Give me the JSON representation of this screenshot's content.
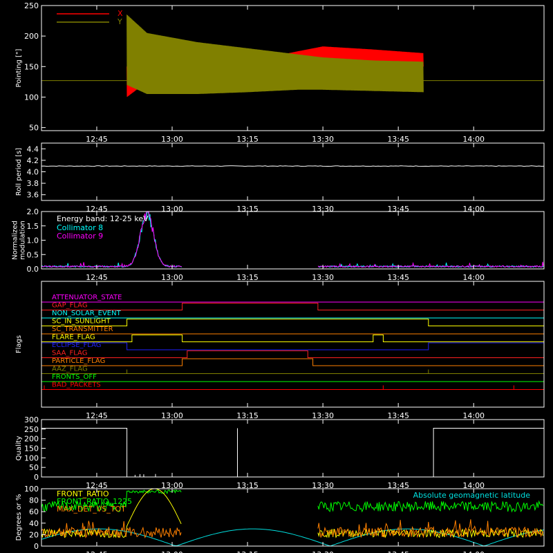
{
  "colors": {
    "background": "#000000",
    "axes": "#ffffff",
    "pointing_x": "#ff0000",
    "pointing_y": "#808000",
    "col8": "#00ffff",
    "col9": "#ff00ff",
    "white": "#ffffff"
  },
  "time_ticks": [
    "12:45",
    "13:00",
    "13:15",
    "13:30",
    "13:45",
    "14:00"
  ],
  "chart_data": [
    {
      "type": "line",
      "title": "",
      "xlabel": "",
      "ylabel": "Pointing [\"]",
      "x_range": [
        "12:34",
        "14:14"
      ],
      "ylim": [
        45,
        250
      ],
      "yticks": [
        "50",
        "100",
        "150",
        "200",
        "250"
      ],
      "legend_placement": "top-left",
      "series": [
        {
          "name": "X",
          "color": "#ff0000",
          "approx_center": 127,
          "envelope_x": [
            "12:51",
            "12:55",
            "13:05",
            "13:15",
            "13:25",
            "13:30",
            "13:40",
            "13:50"
          ],
          "envelope_low": [
            100,
            125,
            140,
            148,
            153,
            155,
            152,
            150
          ],
          "envelope_high": [
            150,
            150,
            152,
            158,
            175,
            183,
            178,
            172
          ]
        },
        {
          "name": "Y",
          "color": "#808000",
          "approx_center": 127,
          "envelope_x": [
            "12:51",
            "12:55",
            "13:05",
            "13:15",
            "13:25",
            "13:30",
            "13:40",
            "13:50"
          ],
          "envelope_low": [
            120,
            105,
            105,
            108,
            112,
            112,
            110,
            108
          ],
          "envelope_high": [
            235,
            205,
            190,
            180,
            170,
            165,
            160,
            158
          ]
        }
      ]
    },
    {
      "type": "line",
      "ylabel": "Roll period [s]",
      "ylim": [
        3.5,
        4.5
      ],
      "yticks": [
        "3.6",
        "3.8",
        "4.0",
        "4.2",
        "4.4"
      ],
      "series": [
        {
          "name": "",
          "constant_value": 4.1
        }
      ]
    },
    {
      "type": "line",
      "ylabel": "Normalized modulation",
      "ylabel_lines": [
        "Normalized",
        "modulation"
      ],
      "ylim": [
        0,
        2.0
      ],
      "yticks": [
        "0.0",
        "0.5",
        "1.0",
        "1.5",
        "2.0"
      ],
      "legend_title": "Energy band: 12-25 keV",
      "legend_placement": "top-left",
      "data_gaps": [
        [
          "13:02",
          "13:29"
        ]
      ],
      "peak": {
        "time": "12:55",
        "value": 1.95
      },
      "series": [
        {
          "name": "Collimator 8",
          "color": "#00ffff"
        },
        {
          "name": "Collimator 9",
          "color": "#ff00ff"
        }
      ]
    },
    {
      "type": "table",
      "ylabel": "Flags",
      "flags": [
        {
          "name": "ATTENUATOR_STATE",
          "color": "#ff00ff",
          "high_intervals": []
        },
        {
          "name": "GAP_FLAG",
          "color": "#ff2020",
          "high_intervals": [
            [
              "13:02",
              "13:29"
            ]
          ]
        },
        {
          "name": "NON_SOLAR_EVENT",
          "color": "#00ffff",
          "high_intervals": []
        },
        {
          "name": "SC_IN_SUNLIGHT",
          "color": "#ffff00",
          "high_intervals": [
            [
              "12:51",
              "13:51"
            ]
          ]
        },
        {
          "name": "SC_TRANSMITTER",
          "color": "#ff8000",
          "high_intervals": []
        },
        {
          "name": "FLARE_FLAG",
          "color": "#ffff00",
          "high_intervals": [
            [
              "12:52",
              "13:02"
            ],
            [
              "13:40",
              "13:42"
            ]
          ]
        },
        {
          "name": "ECLIPSE_FLAG",
          "color": "#2020ff",
          "high_intervals": [
            [
              "12:34",
              "12:51"
            ],
            [
              "13:51",
              "14:14"
            ]
          ]
        },
        {
          "name": "SAA_FLAG",
          "color": "#ff2020",
          "high_intervals": [
            [
              "13:03",
              "13:27"
            ]
          ]
        },
        {
          "name": "PARTICLE_FLAG",
          "color": "#ff8000",
          "high_intervals": [
            [
              "13:02",
              "13:28"
            ]
          ]
        },
        {
          "name": "AAZ_FLAG",
          "color": "#808000",
          "spikes": [
            "12:51",
            "13:51"
          ]
        },
        {
          "name": "FRONTS_OFF",
          "color": "#00ff00",
          "high_intervals": []
        },
        {
          "name": "BAD_PACKETS",
          "color": "#ff0000",
          "spikes": [
            "12:34",
            "13:42",
            "14:08"
          ]
        }
      ]
    },
    {
      "type": "line",
      "ylabel": "Quality",
      "ylim": [
        0,
        300
      ],
      "yticks": [
        "0",
        "50",
        "100",
        "150",
        "200",
        "250",
        "300"
      ],
      "series": [
        {
          "name": "",
          "color": "#ffffff",
          "x": [
            "12:34",
            "12:51",
            "12:51",
            "13:13",
            "13:13",
            "13:13",
            "13:52",
            "13:52",
            "14:14"
          ],
          "y": [
            255,
            255,
            0,
            0,
            255,
            0,
            0,
            255,
            255
          ]
        }
      ]
    },
    {
      "type": "line",
      "ylabel": "Degrees or %",
      "ylim": [
        0,
        100
      ],
      "yticks": [
        "0",
        "20",
        "40",
        "60",
        "80",
        "100"
      ],
      "legend_placement": "top-left",
      "data_gaps": [
        [
          "13:02",
          "13:29"
        ]
      ],
      "series": [
        {
          "name": "FRONT_RATIO",
          "color": "#ffff00"
        },
        {
          "name": "FRONT_RATIO_1225",
          "color": "#00ff00"
        },
        {
          "name": "MAX_DET_VS_TOT",
          "color": "#ff8000"
        },
        {
          "name": "Absolute geomagnetic latitude",
          "color": "#00e0e0"
        }
      ]
    }
  ]
}
